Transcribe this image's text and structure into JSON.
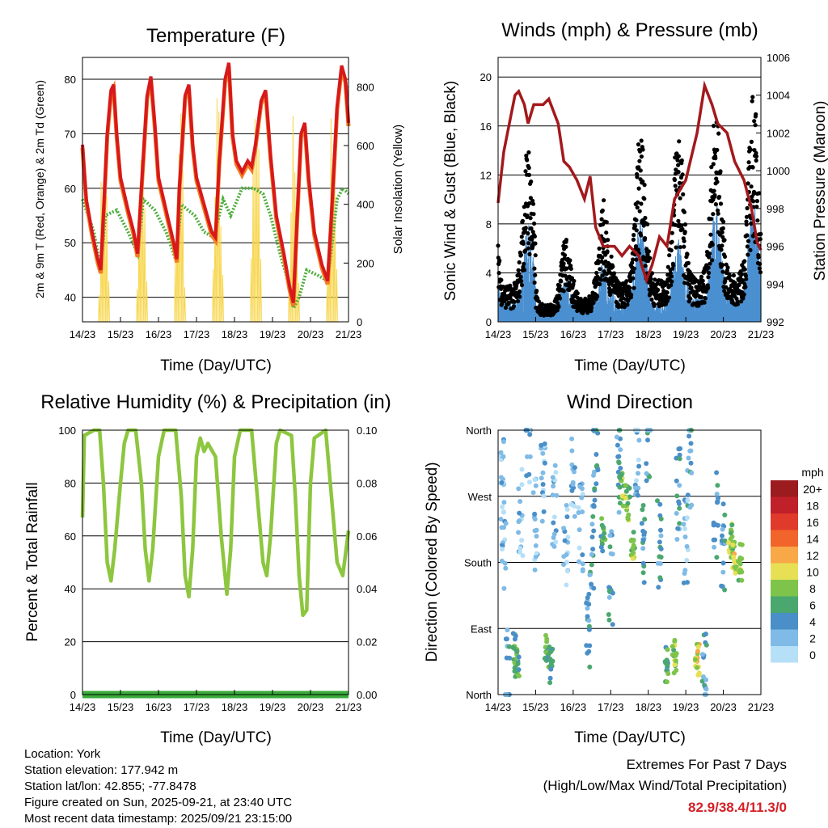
{
  "x_ticks": [
    "14/23",
    "15/23",
    "16/23",
    "17/23",
    "18/23",
    "19/23",
    "20/23",
    "21/23"
  ],
  "info": {
    "location": "Location: York",
    "elevation": "Station elevation: 177.942 m",
    "latlon": "Station lat/lon: 42.855; -77.8478",
    "created": "Figure created on Sun, 2025-09-21, at 23:40 UTC",
    "recent": "Most recent data timestamp: 2025/09/21 23:15:00"
  },
  "extremes": {
    "title": "Extremes For Past 7 Days",
    "subtitle": "(High/Low/Max Wind/Total Precipitation)",
    "values": "82.9/38.4/11.3/0",
    "color": "#d42027"
  },
  "chart_data": [
    {
      "type": "line",
      "title": "Temperature (F)",
      "xlabel": "Time (Day/UTC)",
      "ylabel": "2m & 9m T (Red, Orange) & 2m Td (Green)",
      "y2label": "Solar Insolation (Yellow)",
      "x_unit": "days since 14/23",
      "ylim": [
        35.5,
        84
      ],
      "yticks": [
        40,
        50,
        60,
        70,
        80
      ],
      "y2lim": [
        0,
        900
      ],
      "y2ticks": [
        0,
        200,
        400,
        600,
        800
      ],
      "colors": {
        "t2m": "#d7191c",
        "t9m": "#f47c20",
        "td": "#4cae3a",
        "solar": "#f7d54a"
      },
      "t2m": [
        [
          0,
          68
        ],
        [
          0.1,
          58
        ],
        [
          0.25,
          52
        ],
        [
          0.4,
          47
        ],
        [
          0.48,
          45
        ],
        [
          0.55,
          55
        ],
        [
          0.65,
          70
        ],
        [
          0.75,
          78
        ],
        [
          0.82,
          79
        ],
        [
          0.9,
          70
        ],
        [
          1,
          62
        ],
        [
          1.2,
          56
        ],
        [
          1.35,
          52
        ],
        [
          1.45,
          48
        ],
        [
          1.55,
          60
        ],
        [
          1.7,
          77
        ],
        [
          1.8,
          80.5
        ],
        [
          1.9,
          72
        ],
        [
          2,
          62
        ],
        [
          2.2,
          56
        ],
        [
          2.4,
          50
        ],
        [
          2.48,
          47
        ],
        [
          2.55,
          60
        ],
        [
          2.7,
          77
        ],
        [
          2.8,
          79
        ],
        [
          2.9,
          68
        ],
        [
          3,
          62
        ],
        [
          3.2,
          57
        ],
        [
          3.4,
          52
        ],
        [
          3.5,
          51
        ],
        [
          3.6,
          65
        ],
        [
          3.75,
          80
        ],
        [
          3.85,
          83
        ],
        [
          3.95,
          70
        ],
        [
          4.05,
          65
        ],
        [
          4.2,
          63
        ],
        [
          4.35,
          65
        ],
        [
          4.45,
          64
        ],
        [
          4.55,
          68
        ],
        [
          4.7,
          76
        ],
        [
          4.82,
          78
        ],
        [
          4.95,
          66
        ],
        [
          5.1,
          55
        ],
        [
          5.3,
          48
        ],
        [
          5.45,
          42
        ],
        [
          5.55,
          39
        ],
        [
          5.65,
          55
        ],
        [
          5.75,
          70
        ],
        [
          5.85,
          72
        ],
        [
          5.95,
          62
        ],
        [
          6.1,
          52
        ],
        [
          6.3,
          46
        ],
        [
          6.45,
          43
        ],
        [
          6.55,
          55
        ],
        [
          6.7,
          75
        ],
        [
          6.82,
          82.5
        ],
        [
          6.92,
          80
        ],
        [
          7,
          72
        ]
      ],
      "td": [
        [
          0,
          58
        ],
        [
          0.3,
          52
        ],
        [
          0.48,
          45
        ],
        [
          0.6,
          55
        ],
        [
          0.9,
          56
        ],
        [
          1.2,
          52
        ],
        [
          1.45,
          48
        ],
        [
          1.6,
          58
        ],
        [
          1.9,
          56
        ],
        [
          2.2,
          52
        ],
        [
          2.45,
          47
        ],
        [
          2.6,
          57
        ],
        [
          2.95,
          55
        ],
        [
          3.2,
          52
        ],
        [
          3.45,
          51
        ],
        [
          3.7,
          58
        ],
        [
          3.9,
          55
        ],
        [
          4.2,
          60
        ],
        [
          4.5,
          60
        ],
        [
          4.75,
          59
        ],
        [
          4.95,
          55
        ],
        [
          5.2,
          48
        ],
        [
          5.45,
          42
        ],
        [
          5.55,
          38
        ],
        [
          5.7,
          40
        ],
        [
          5.9,
          45
        ],
        [
          6.2,
          44
        ],
        [
          6.45,
          43
        ],
        [
          6.7,
          58
        ],
        [
          6.85,
          60
        ],
        [
          7,
          59
        ]
      ],
      "solar_daily_peak": [
        700,
        650,
        860,
        820,
        870,
        790,
        740
      ]
    },
    {
      "type": "scatter",
      "title": "Winds (mph) & Pressure (mb)",
      "xlabel": "Time (Day/UTC)",
      "ylabel": "Sonic Wind & Gust (Blue, Black)",
      "y2label": "Station Pressure (Maroon)",
      "ylim": [
        0,
        21.6
      ],
      "yticks": [
        0,
        4,
        8,
        12,
        16,
        20
      ],
      "y2lim": [
        992,
        1006
      ],
      "y2ticks": [
        992,
        994,
        996,
        998,
        1000,
        1002,
        1004,
        1006
      ],
      "colors": {
        "wind": "#4a8fd0",
        "gust": "#000000",
        "pressure": "#a3191c"
      },
      "gust_daily_peak": [
        15,
        7,
        10,
        16,
        17,
        18,
        19
      ],
      "wind_daily_peak": [
        8,
        4,
        5,
        9,
        7,
        10,
        10
      ],
      "pressure": [
        [
          0,
          998.3
        ],
        [
          0.15,
          1001
        ],
        [
          0.3,
          1002.5
        ],
        [
          0.45,
          1004
        ],
        [
          0.55,
          1004.2
        ],
        [
          0.7,
          1003.5
        ],
        [
          0.8,
          1002.5
        ],
        [
          0.95,
          1003.5
        ],
        [
          1.2,
          1003.5
        ],
        [
          1.35,
          1003.8
        ],
        [
          1.6,
          1002.5
        ],
        [
          1.75,
          1000.5
        ],
        [
          1.9,
          1000.2
        ],
        [
          2.1,
          999.5
        ],
        [
          2.3,
          998.5
        ],
        [
          2.45,
          999.7
        ],
        [
          2.6,
          997
        ],
        [
          2.8,
          996
        ],
        [
          3.1,
          996
        ],
        [
          3.3,
          995.5
        ],
        [
          3.5,
          996
        ],
        [
          3.75,
          995.5
        ],
        [
          3.95,
          994.2
        ],
        [
          4.1,
          995
        ],
        [
          4.3,
          996.5
        ],
        [
          4.5,
          996
        ],
        [
          4.7,
          998.5
        ],
        [
          5,
          999.5
        ],
        [
          5.3,
          1002
        ],
        [
          5.5,
          1004.5
        ],
        [
          5.7,
          1003.5
        ],
        [
          5.85,
          1002.5
        ],
        [
          6.1,
          1002
        ],
        [
          6.3,
          1000.5
        ],
        [
          6.55,
          999.5
        ],
        [
          6.75,
          998
        ],
        [
          6.9,
          996.2
        ],
        [
          7,
          995.8
        ]
      ]
    },
    {
      "type": "line",
      "title": "Relative Humidity (%) & Precipitation (in)",
      "xlabel": "Time (Day/UTC)",
      "ylabel": "Percent & Total Rainfall",
      "ylim": [
        0,
        100
      ],
      "yticks": [
        0,
        20,
        40,
        60,
        80,
        100
      ],
      "y2lim": [
        0,
        0.1
      ],
      "y2ticks": [
        "0.00",
        "0.02",
        "0.04",
        "0.06",
        "0.08",
        "0.10"
      ],
      "colors": {
        "rh": "#8dc63f",
        "precip": "#3aaa3a"
      },
      "rh": [
        [
          0,
          67
        ],
        [
          0.05,
          98
        ],
        [
          0.3,
          100
        ],
        [
          0.45,
          100
        ],
        [
          0.55,
          80
        ],
        [
          0.65,
          50
        ],
        [
          0.75,
          43
        ],
        [
          0.85,
          55
        ],
        [
          1,
          80
        ],
        [
          1.1,
          95
        ],
        [
          1.2,
          100
        ],
        [
          1.4,
          100
        ],
        [
          1.55,
          80
        ],
        [
          1.65,
          55
        ],
        [
          1.75,
          43
        ],
        [
          1.85,
          55
        ],
        [
          2,
          90
        ],
        [
          2.15,
          100
        ],
        [
          2.45,
          100
        ],
        [
          2.6,
          75
        ],
        [
          2.7,
          45
        ],
        [
          2.8,
          37
        ],
        [
          2.9,
          55
        ],
        [
          3,
          90
        ],
        [
          3.1,
          97
        ],
        [
          3.2,
          92
        ],
        [
          3.3,
          95
        ],
        [
          3.5,
          90
        ],
        [
          3.65,
          60
        ],
        [
          3.8,
          38
        ],
        [
          3.9,
          55
        ],
        [
          4,
          90
        ],
        [
          4.15,
          100
        ],
        [
          4.45,
          100
        ],
        [
          4.6,
          75
        ],
        [
          4.75,
          50
        ],
        [
          4.85,
          45
        ],
        [
          4.95,
          60
        ],
        [
          5.1,
          95
        ],
        [
          5.2,
          100
        ],
        [
          5.5,
          98
        ],
        [
          5.6,
          75
        ],
        [
          5.7,
          45
        ],
        [
          5.8,
          30
        ],
        [
          5.9,
          32
        ],
        [
          6,
          80
        ],
        [
          6.1,
          97
        ],
        [
          6.4,
          100
        ],
        [
          6.55,
          75
        ],
        [
          6.7,
          50
        ],
        [
          6.85,
          45
        ],
        [
          7,
          62
        ]
      ],
      "precip_total": 0
    },
    {
      "type": "scatter",
      "title": "Wind Direction",
      "xlabel": "Time (Day/UTC)",
      "ylabel": "Direction (Colored By Speed)",
      "ylim": [
        0,
        360
      ],
      "ytick_labels": [
        "North",
        "East",
        "South",
        "West",
        "North"
      ],
      "legend_title": "mph",
      "legend": [
        {
          "label": "20+",
          "color": "#9b1b1e"
        },
        {
          "label": "18",
          "color": "#c0202a"
        },
        {
          "label": "16",
          "color": "#e03a2a"
        },
        {
          "label": "14",
          "color": "#f2652a"
        },
        {
          "label": "12",
          "color": "#f8a847"
        },
        {
          "label": "10",
          "color": "#e7e055"
        },
        {
          "label": "8",
          "color": "#7ec44b"
        },
        {
          "label": "6",
          "color": "#4aa86e"
        },
        {
          "label": "4",
          "color": "#4a8fc8"
        },
        {
          "label": "2",
          "color": "#7fbbe6"
        },
        {
          "label": "0",
          "color": "#b6e0f7"
        }
      ],
      "clusters": [
        [
          0.1,
          300,
          1
        ],
        [
          0.15,
          200,
          1
        ],
        [
          0.25,
          30,
          2
        ],
        [
          0.45,
          60,
          3
        ],
        [
          0.5,
          40,
          3
        ],
        [
          0.6,
          250,
          1
        ],
        [
          0.8,
          340,
          1
        ],
        [
          1.0,
          230,
          1
        ],
        [
          1.2,
          290,
          1
        ],
        [
          1.3,
          60,
          3
        ],
        [
          1.4,
          40,
          3
        ],
        [
          1.5,
          260,
          1
        ],
        [
          1.8,
          200,
          1
        ],
        [
          2.0,
          300,
          1
        ],
        [
          2.2,
          230,
          1
        ],
        [
          2.4,
          100,
          2
        ],
        [
          2.5,
          200,
          2
        ],
        [
          2.6,
          320,
          2
        ],
        [
          2.8,
          220,
          3
        ],
        [
          3.0,
          160,
          2
        ],
        [
          3.2,
          310,
          2
        ],
        [
          3.3,
          280,
          4
        ],
        [
          3.45,
          260,
          4
        ],
        [
          3.6,
          210,
          4
        ],
        [
          3.7,
          330,
          1
        ],
        [
          3.85,
          210,
          2
        ],
        [
          4.0,
          350,
          2
        ],
        [
          4.3,
          200,
          2
        ],
        [
          4.5,
          40,
          3
        ],
        [
          4.7,
          50,
          4
        ],
        [
          4.8,
          270,
          2
        ],
        [
          5.0,
          200,
          1
        ],
        [
          5.1,
          320,
          2
        ],
        [
          5.3,
          50,
          5
        ],
        [
          5.5,
          20,
          2
        ],
        [
          5.8,
          250,
          2
        ],
        [
          6.0,
          200,
          2
        ],
        [
          6.2,
          210,
          4
        ],
        [
          6.3,
          190,
          5
        ],
        [
          6.45,
          180,
          4
        ]
      ]
    }
  ]
}
